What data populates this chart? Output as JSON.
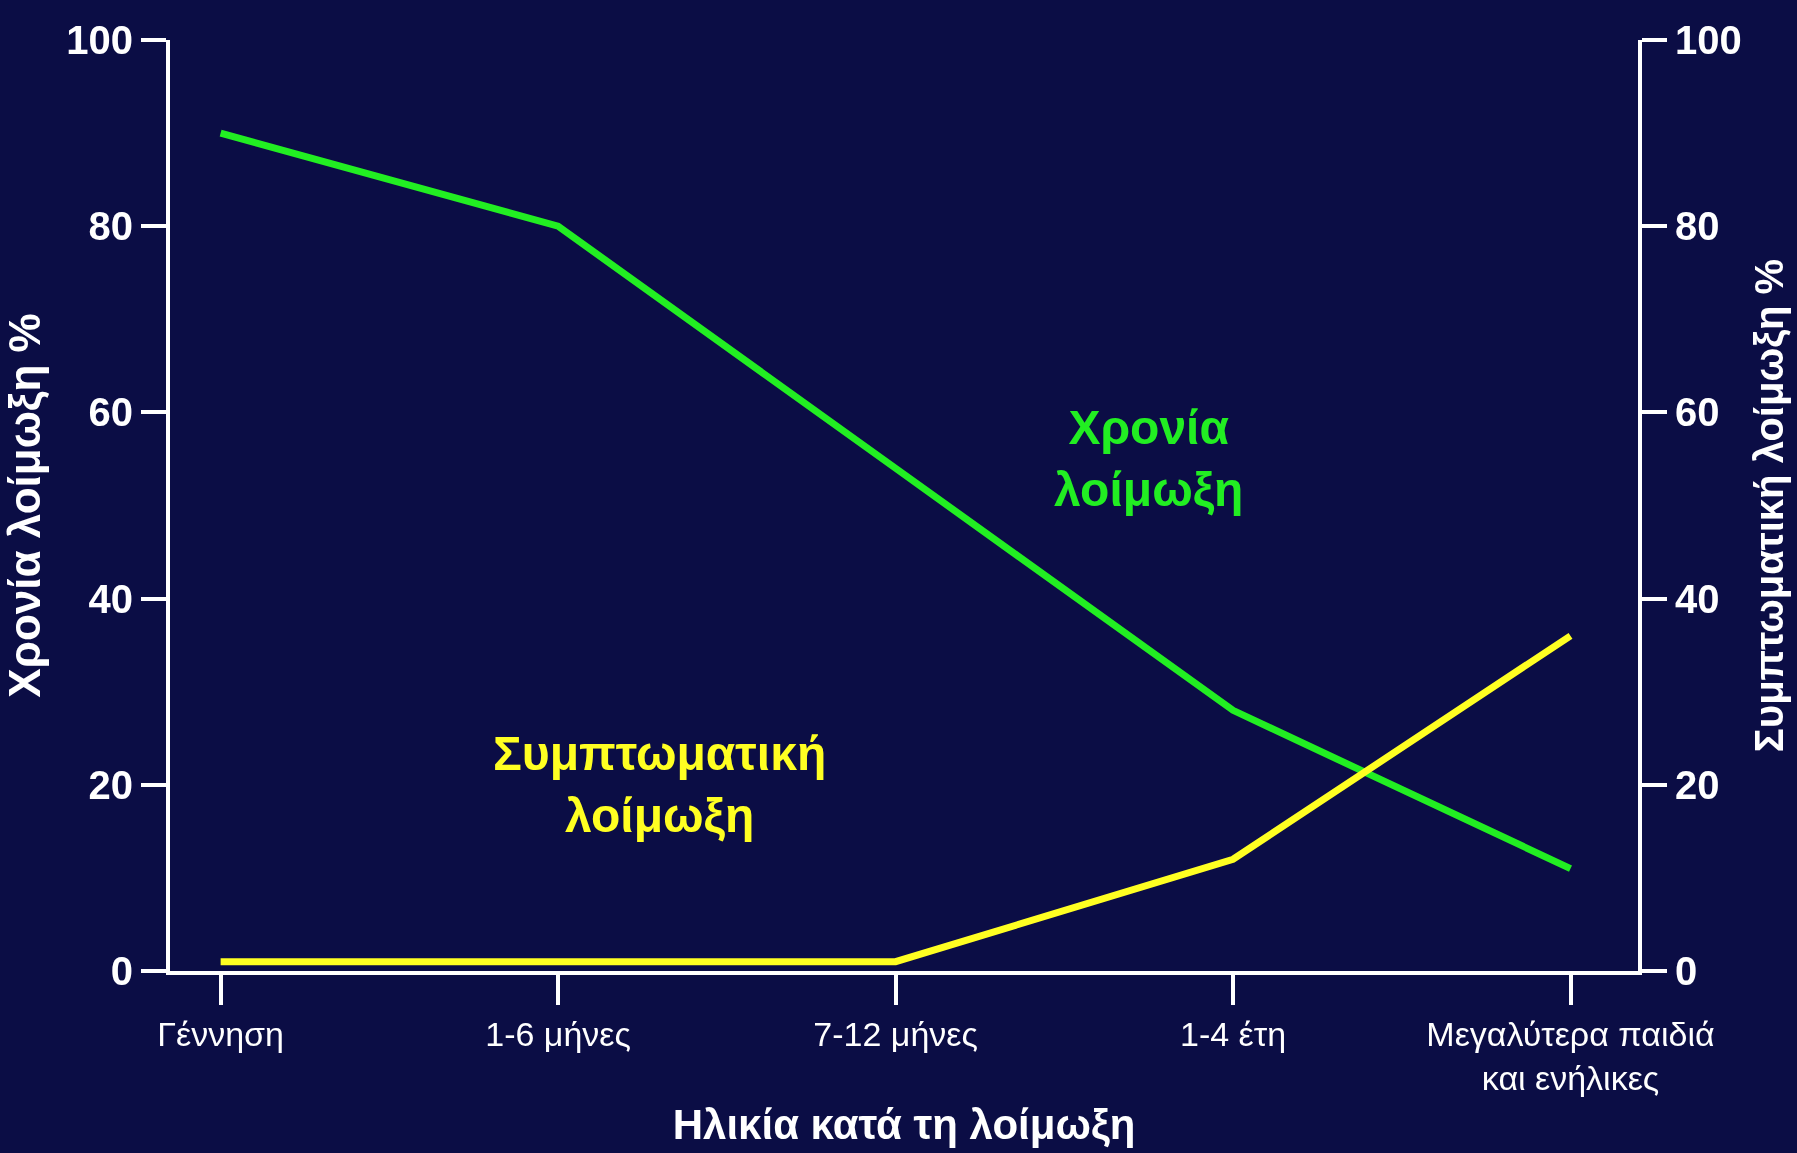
{
  "chart_data": {
    "type": "line",
    "xlabel": "Ηλικία κατά τη λοίμωξη",
    "ylabel": "Χρονία λοίμωξη %",
    "y2label": "Συμπτωματική λοίμωξη %",
    "categories": [
      "Γέννηση",
      "1-6 μήνες",
      "7-12 μήνες",
      "1-4 έτη",
      "Μεγαλύτερα παιδιά\nκαι ενήλικες"
    ],
    "series": [
      {
        "name": "Χρονία\nλοίμωξη",
        "color": "#22ee22",
        "values": [
          90,
          80,
          54,
          28,
          11
        ]
      },
      {
        "name": "Συμπτωματική\nλοίμωξη",
        "color": "#ffff22",
        "values": [
          1,
          1,
          1,
          12,
          36
        ],
        "axis": "y2"
      }
    ],
    "ylim": [
      0,
      100
    ],
    "yticks": [
      0,
      20,
      40,
      60,
      80,
      100
    ],
    "y2lim": [
      0,
      100
    ],
    "y2ticks": [
      0,
      20,
      40,
      60,
      80,
      100
    ],
    "grid": false,
    "legend": false,
    "marker": "none",
    "line_style": "solid"
  }
}
